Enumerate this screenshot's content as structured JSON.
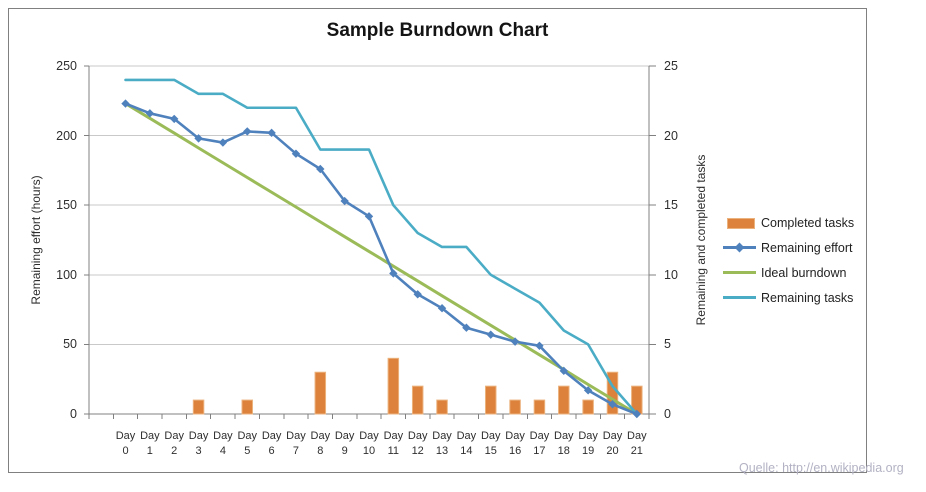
{
  "title": "Sample Burndown Chart",
  "source_note": "Quelle: http://en.wikipedia.org",
  "chart_data": {
    "type": "combo-bar-line",
    "title": "Sample Burndown Chart",
    "categories": [
      "Day 0",
      "Day 1",
      "Day 2",
      "Day 3",
      "Day 4",
      "Day 5",
      "Day 6",
      "Day 7",
      "Day 8",
      "Day 9",
      "Day 10",
      "Day 11",
      "Day 12",
      "Day 13",
      "Day 14",
      "Day 15",
      "Day 16",
      "Day 17",
      "Day 18",
      "Day 19",
      "Day 20",
      "Day 21"
    ],
    "left_axis": {
      "label": "Remaining effort (hours)",
      "ticks": [
        0,
        50,
        100,
        150,
        200,
        250
      ],
      "range": [
        0,
        250
      ]
    },
    "right_axis": {
      "label": "Remaining and completed tasks",
      "ticks": [
        0,
        5,
        10,
        15,
        20,
        25
      ],
      "range": [
        0,
        25
      ]
    },
    "grid": true,
    "legend_position": "right",
    "grid_color": "#C9C9C9",
    "axis_color": "#808080",
    "series": [
      {
        "name": "Completed tasks",
        "type": "bar",
        "axis": "right",
        "color": "#DC823C",
        "values": [
          0,
          0,
          0,
          1,
          0,
          1,
          0,
          0,
          3,
          0,
          0,
          4,
          2,
          1,
          0,
          2,
          1,
          1,
          2,
          1,
          3,
          2
        ]
      },
      {
        "name": "Remaining effort",
        "type": "line",
        "marker": "diamond",
        "axis": "left",
        "color": "#4F81BD",
        "values": [
          223,
          216,
          212,
          198,
          195,
          203,
          202,
          187,
          176,
          153,
          142,
          101,
          86,
          76,
          62,
          57,
          52,
          49,
          31,
          17,
          7,
          0
        ]
      },
      {
        "name": "Ideal burndown",
        "type": "line",
        "axis": "left",
        "color": "#9BBB59",
        "values": [
          223,
          212.4,
          201.8,
          191.1,
          180.5,
          169.9,
          159.3,
          148.7,
          138.0,
          127.4,
          116.8,
          106.2,
          95.6,
          84.9,
          74.3,
          63.7,
          53.1,
          42.5,
          31.9,
          21.2,
          10.6,
          0
        ]
      },
      {
        "name": "Remaining tasks",
        "type": "line",
        "axis": "right",
        "color": "#4BACC6",
        "values": [
          24,
          24,
          24,
          23,
          23,
          22,
          22,
          22,
          19,
          19,
          19,
          15,
          13,
          12,
          12,
          10,
          9,
          8,
          6,
          5,
          2,
          0
        ]
      }
    ]
  }
}
